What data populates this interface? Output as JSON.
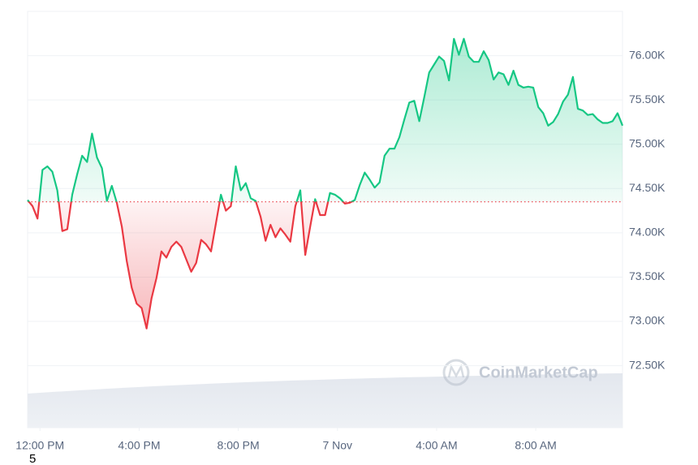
{
  "chart_data": {
    "type": "line",
    "x": [
      11.5,
      11.7,
      11.9,
      12.1,
      12.3,
      12.5,
      12.7,
      12.9,
      13.1,
      13.3,
      13.5,
      13.7,
      13.9,
      14.1,
      14.3,
      14.5,
      14.7,
      14.9,
      15.1,
      15.3,
      15.5,
      15.7,
      15.9,
      16.1,
      16.3,
      16.5,
      16.7,
      16.9,
      17.1,
      17.3,
      17.5,
      17.7,
      17.9,
      18.1,
      18.3,
      18.5,
      18.7,
      18.9,
      19.1,
      19.3,
      19.5,
      19.7,
      19.9,
      20.1,
      20.3,
      20.5,
      20.7,
      20.9,
      21.1,
      21.3,
      21.5,
      21.7,
      21.9,
      22.1,
      22.3,
      22.5,
      22.7,
      22.9,
      23.1,
      23.3,
      23.5,
      23.7,
      23.9,
      24.1,
      24.3,
      24.5,
      24.7,
      24.9,
      25.1,
      25.3,
      25.5,
      25.7,
      25.9,
      26.1,
      26.3,
      26.5,
      26.7,
      26.9,
      27.1,
      27.3,
      27.5,
      27.7,
      27.9,
      28.1,
      28.3,
      28.5,
      28.7,
      28.9,
      29.1,
      29.3,
      29.5,
      29.7,
      29.9,
      30.1,
      30.3,
      30.5,
      30.7,
      30.9,
      31.1,
      31.3,
      31.5,
      31.7,
      31.9,
      32.1,
      32.3,
      32.5,
      32.7,
      32.9,
      33.1,
      33.3,
      33.5,
      33.7,
      33.9,
      34.1,
      34.3,
      34.5,
      34.7,
      34.9,
      35.1,
      35.3,
      35.5
    ],
    "values": [
      74370,
      74300,
      74160,
      74710,
      74750,
      74690,
      74480,
      74020,
      74040,
      74430,
      74660,
      74870,
      74800,
      75120,
      74850,
      74730,
      74360,
      74530,
      74340,
      74070,
      73680,
      73380,
      73200,
      73150,
      72920,
      73260,
      73490,
      73790,
      73720,
      73840,
      73900,
      73840,
      73700,
      73560,
      73660,
      73920,
      73870,
      73790,
      74110,
      74430,
      74250,
      74300,
      74750,
      74480,
      74560,
      74390,
      74360,
      74180,
      73910,
      74090,
      73950,
      74050,
      73980,
      73900,
      74300,
      74480,
      73750,
      74070,
      74380,
      74200,
      74200,
      74450,
      74430,
      74390,
      74330,
      74340,
      74370,
      74540,
      74680,
      74600,
      74510,
      74570,
      74870,
      74950,
      74950,
      75080,
      75280,
      75470,
      75490,
      75260,
      75530,
      75810,
      75900,
      75990,
      75940,
      75720,
      76190,
      76010,
      76190,
      75990,
      75930,
      75930,
      76050,
      75950,
      75730,
      75810,
      75790,
      75670,
      75830,
      75670,
      75640,
      75650,
      75640,
      75420,
      75350,
      75210,
      75250,
      75340,
      75480,
      75560,
      75760,
      75400,
      75380,
      75330,
      75340,
      75280,
      75240,
      75240,
      75260,
      75350,
      75210
    ],
    "baseline": 74350,
    "up_color": "#16c784",
    "down_color": "#ea3943",
    "xlim": [
      11.5,
      35.5
    ],
    "xticks": [
      {
        "value": 12,
        "label": "12:00 PM"
      },
      {
        "value": 16,
        "label": "4:00 PM"
      },
      {
        "value": 20,
        "label": "8:00 PM"
      },
      {
        "value": 24,
        "label": "7 Nov"
      },
      {
        "value": 28,
        "label": "4:00 AM"
      },
      {
        "value": 32,
        "label": "8:00 AM"
      }
    ],
    "ylim": [
      71800,
      76500
    ],
    "yticks": [
      {
        "value": 72500,
        "label": "72.50K"
      },
      {
        "value": 73000,
        "label": "73.00K"
      },
      {
        "value": 73500,
        "label": "73.50K"
      },
      {
        "value": 74000,
        "label": "74.00K"
      },
      {
        "value": 74500,
        "label": "74.50K"
      },
      {
        "value": 75000,
        "label": "75.00K"
      },
      {
        "value": 75500,
        "label": "75.50K"
      },
      {
        "value": 76000,
        "label": "76.00K"
      }
    ],
    "grid": true,
    "watermark": "CoinMarketCap",
    "footnote": "5"
  }
}
